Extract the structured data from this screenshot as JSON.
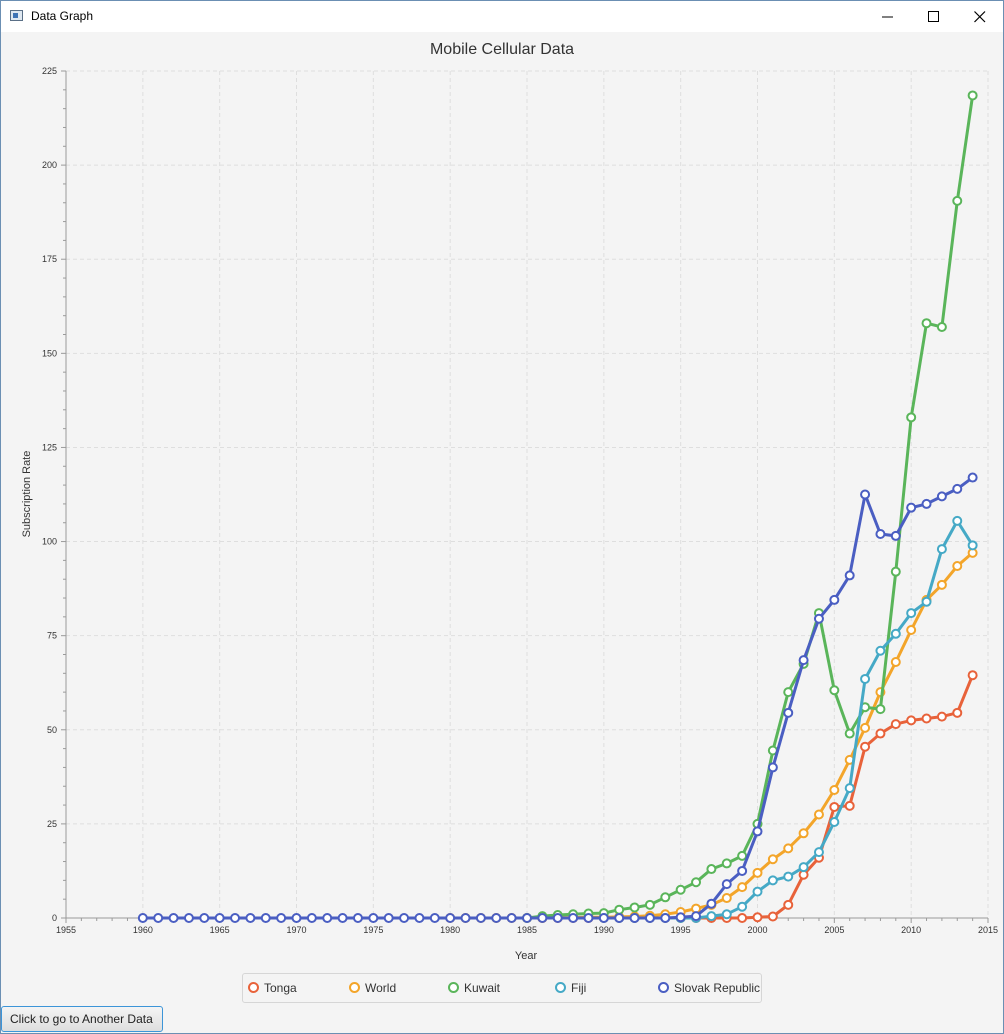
{
  "window": {
    "title": "Data Graph"
  },
  "chart_data": {
    "type": "line",
    "title": "Mobile Cellular Data",
    "xlabel": "Year",
    "ylabel": "Subscription Rate",
    "xlim": [
      1955,
      2015
    ],
    "ylim": [
      0,
      225
    ],
    "x_ticks": [
      1955,
      1960,
      1965,
      1970,
      1975,
      1980,
      1985,
      1990,
      1995,
      2000,
      2005,
      2010,
      2015
    ],
    "y_ticks": [
      0,
      25,
      50,
      75,
      100,
      125,
      150,
      175,
      200,
      225
    ],
    "grid": true,
    "legend_position": "bottom",
    "series": [
      {
        "name": "Tonga",
        "color": "#e8623a",
        "points": [
          [
            1986,
            0
          ],
          [
            1987,
            0
          ],
          [
            1988,
            0
          ],
          [
            1989,
            0
          ],
          [
            1990,
            0
          ],
          [
            1991,
            0
          ],
          [
            1992,
            0
          ],
          [
            1993,
            0
          ],
          [
            1994,
            0
          ],
          [
            1995,
            0
          ],
          [
            1996,
            0
          ],
          [
            1997,
            0
          ],
          [
            1998,
            0
          ],
          [
            1999,
            0
          ],
          [
            2000,
            0.2
          ],
          [
            2001,
            0.4
          ],
          [
            2002,
            3.5
          ],
          [
            2003,
            11.5
          ],
          [
            2004,
            16
          ],
          [
            2005,
            29.5
          ],
          [
            2006,
            29.8
          ],
          [
            2007,
            45.5
          ],
          [
            2008,
            49
          ],
          [
            2009,
            51.5
          ],
          [
            2010,
            52.5
          ],
          [
            2011,
            53
          ],
          [
            2012,
            53.5
          ],
          [
            2013,
            54.5
          ],
          [
            2014,
            64.5
          ]
        ]
      },
      {
        "name": "World",
        "color": "#f3a52a",
        "points": [
          [
            1980,
            0
          ],
          [
            1981,
            0
          ],
          [
            1982,
            0
          ],
          [
            1983,
            0
          ],
          [
            1984,
            0
          ],
          [
            1985,
            0
          ],
          [
            1986,
            0
          ],
          [
            1987,
            0.1
          ],
          [
            1988,
            0.1
          ],
          [
            1989,
            0.2
          ],
          [
            1990,
            0.2
          ],
          [
            1991,
            0.3
          ],
          [
            1992,
            0.4
          ],
          [
            1993,
            0.6
          ],
          [
            1994,
            1
          ],
          [
            1995,
            1.6
          ],
          [
            1996,
            2.5
          ],
          [
            1997,
            3.5
          ],
          [
            1998,
            5.3
          ],
          [
            1999,
            8.2
          ],
          [
            2000,
            12
          ],
          [
            2001,
            15.6
          ],
          [
            2002,
            18.5
          ],
          [
            2003,
            22.5
          ],
          [
            2004,
            27.5
          ],
          [
            2005,
            34
          ],
          [
            2006,
            42
          ],
          [
            2007,
            50.5
          ],
          [
            2008,
            60
          ],
          [
            2009,
            68
          ],
          [
            2010,
            76.5
          ],
          [
            2011,
            84.5
          ],
          [
            2012,
            88.5
          ],
          [
            2013,
            93.5
          ],
          [
            2014,
            97
          ]
        ]
      },
      {
        "name": "Kuwait",
        "color": "#5ab55a",
        "points": [
          [
            1985,
            0
          ],
          [
            1986,
            0.5
          ],
          [
            1987,
            0.8
          ],
          [
            1988,
            1
          ],
          [
            1989,
            1.2
          ],
          [
            1990,
            1.3
          ],
          [
            1991,
            2.2
          ],
          [
            1992,
            2.8
          ],
          [
            1993,
            3.5
          ],
          [
            1994,
            5.5
          ],
          [
            1995,
            7.5
          ],
          [
            1996,
            9.5
          ],
          [
            1997,
            13
          ],
          [
            1998,
            14.5
          ],
          [
            1999,
            16.5
          ],
          [
            2000,
            25
          ],
          [
            2001,
            44.5
          ],
          [
            2002,
            60
          ],
          [
            2003,
            67.5
          ],
          [
            2004,
            81
          ],
          [
            2005,
            60.5
          ],
          [
            2006,
            49
          ],
          [
            2007,
            56
          ],
          [
            2008,
            55.5
          ],
          [
            2009,
            92
          ],
          [
            2010,
            133
          ],
          [
            2011,
            158
          ],
          [
            2012,
            157
          ],
          [
            2013,
            190.5
          ],
          [
            2014,
            218.5
          ]
        ]
      },
      {
        "name": "Fiji",
        "color": "#45a9c6",
        "points": [
          [
            1990,
            0
          ],
          [
            1991,
            0
          ],
          [
            1992,
            0
          ],
          [
            1993,
            0
          ],
          [
            1994,
            0
          ],
          [
            1995,
            0
          ],
          [
            1996,
            0
          ],
          [
            1997,
            0.5
          ],
          [
            1998,
            1
          ],
          [
            1999,
            3
          ],
          [
            2000,
            7
          ],
          [
            2001,
            10
          ],
          [
            2002,
            11
          ],
          [
            2003,
            13.5
          ],
          [
            2004,
            17.5
          ],
          [
            2005,
            25.5
          ],
          [
            2006,
            34.5
          ],
          [
            2007,
            63.5
          ],
          [
            2008,
            71
          ],
          [
            2009,
            75.5
          ],
          [
            2010,
            81
          ],
          [
            2011,
            84
          ],
          [
            2012,
            98
          ],
          [
            2013,
            105.5
          ],
          [
            2014,
            99
          ]
        ]
      },
      {
        "name": "Slovak Republic",
        "color": "#4a5ec2",
        "points": [
          [
            1960,
            0
          ],
          [
            1961,
            0
          ],
          [
            1962,
            0
          ],
          [
            1963,
            0
          ],
          [
            1964,
            0
          ],
          [
            1965,
            0
          ],
          [
            1966,
            0
          ],
          [
            1967,
            0
          ],
          [
            1968,
            0
          ],
          [
            1969,
            0
          ],
          [
            1970,
            0
          ],
          [
            1971,
            0
          ],
          [
            1972,
            0
          ],
          [
            1973,
            0
          ],
          [
            1974,
            0
          ],
          [
            1975,
            0
          ],
          [
            1976,
            0
          ],
          [
            1977,
            0
          ],
          [
            1978,
            0
          ],
          [
            1979,
            0
          ],
          [
            1980,
            0
          ],
          [
            1981,
            0
          ],
          [
            1982,
            0
          ],
          [
            1983,
            0
          ],
          [
            1984,
            0
          ],
          [
            1985,
            0
          ],
          [
            1986,
            0
          ],
          [
            1987,
            0
          ],
          [
            1988,
            0
          ],
          [
            1989,
            0
          ],
          [
            1990,
            0
          ],
          [
            1991,
            0
          ],
          [
            1992,
            0
          ],
          [
            1993,
            0
          ],
          [
            1994,
            0
          ],
          [
            1995,
            0.2
          ],
          [
            1996,
            0.5
          ],
          [
            1997,
            3.8
          ],
          [
            1998,
            9
          ],
          [
            1999,
            12.5
          ],
          [
            2000,
            23
          ],
          [
            2001,
            40
          ],
          [
            2002,
            54.5
          ],
          [
            2003,
            68.5
          ],
          [
            2004,
            79.5
          ],
          [
            2005,
            84.5
          ],
          [
            2006,
            91
          ],
          [
            2007,
            112.5
          ],
          [
            2008,
            102
          ],
          [
            2009,
            101.5
          ],
          [
            2010,
            109
          ],
          [
            2011,
            110
          ],
          [
            2012,
            112
          ],
          [
            2013,
            114
          ],
          [
            2014,
            117
          ]
        ]
      }
    ]
  },
  "nav_button": {
    "label": "Click to go to Another Data"
  }
}
